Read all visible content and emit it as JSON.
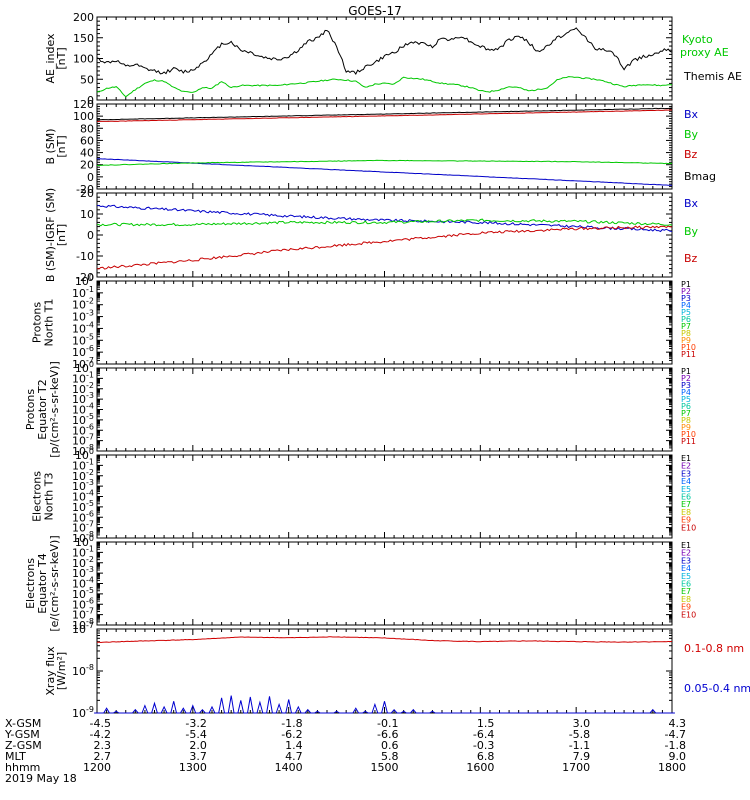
{
  "title": "GOES-17",
  "x_axis": {
    "range": [
      1200,
      1800
    ],
    "rows": [
      {
        "label": "X-GSM",
        "values": [
          "-4.5",
          "-3.2",
          "-1.8",
          "-0.1",
          "1.5",
          "3.0",
          "4.3"
        ]
      },
      {
        "label": "Y-GSM",
        "values": [
          "-4.2",
          "-5.4",
          "-6.2",
          "-6.6",
          "-6.4",
          "-5.8",
          "-4.7"
        ]
      },
      {
        "label": "Z-GSM",
        "values": [
          "2.3",
          "2.0",
          "1.4",
          "0.6",
          "-0.3",
          "-1.1",
          "-1.8"
        ]
      },
      {
        "label": "MLT",
        "values": [
          "2.7",
          "3.7",
          "4.7",
          "5.8",
          "6.8",
          "7.9",
          "9.0"
        ]
      },
      {
        "label": "hhmm",
        "values": [
          "1200",
          "1300",
          "1400",
          "1500",
          "1600",
          "1700",
          "1800"
        ]
      }
    ],
    "date": "2019 May 18"
  },
  "colors": {
    "black": "#000000",
    "green": "#00c800",
    "blue": "#0000c8",
    "red": "#c80000",
    "xray_long": "#d00000",
    "xray_short": "#0000d0"
  },
  "chart_data": [
    {
      "type": "line",
      "ylabel": "AE_index [nT]",
      "ylim": [
        0,
        200
      ],
      "ticks": [
        "0",
        "50",
        "100",
        "150",
        "200"
      ],
      "x": [
        1200,
        1210,
        1220,
        1230,
        1240,
        1250,
        1260,
        1270,
        1280,
        1290,
        1300,
        1310,
        1320,
        1330,
        1340,
        1350,
        1360,
        1370,
        1380,
        1390,
        1400,
        1410,
        1420,
        1430,
        1440,
        1450,
        1460,
        1470,
        1480,
        1490,
        1500,
        1510,
        1520,
        1530,
        1540,
        1550,
        1560,
        1570,
        1580,
        1590,
        1600,
        1610,
        1620,
        1630,
        1640,
        1650,
        1660,
        1670,
        1680,
        1690,
        1700,
        1710,
        1720,
        1730,
        1740,
        1750,
        1760,
        1770,
        1780,
        1790,
        1800
      ],
      "series": [
        {
          "name": "Kyoto proxy AE",
          "color": "#00c800",
          "values": [
            18,
            28,
            32,
            8,
            25,
            40,
            48,
            45,
            30,
            20,
            18,
            30,
            28,
            45,
            30,
            35,
            35,
            35,
            35,
            35,
            38,
            40,
            42,
            45,
            48,
            50,
            48,
            45,
            30,
            38,
            40,
            38,
            55,
            52,
            50,
            45,
            40,
            38,
            35,
            30,
            22,
            20,
            25,
            32,
            30,
            22,
            25,
            30,
            48,
            55,
            55,
            52,
            50,
            45,
            38,
            32,
            35,
            38,
            36,
            35,
            38
          ]
        },
        {
          "name": "Themis AE",
          "color": "#000000",
          "values": [
            100,
            90,
            95,
            80,
            85,
            75,
            70,
            65,
            75,
            68,
            72,
            90,
            110,
            135,
            140,
            120,
            115,
            105,
            100,
            98,
            105,
            120,
            140,
            150,
            168,
            130,
            70,
            65,
            80,
            90,
            105,
            115,
            130,
            140,
            135,
            130,
            150,
            145,
            155,
            140,
            130,
            120,
            125,
            145,
            155,
            140,
            115,
            130,
            150,
            160,
            172,
            150,
            125,
            120,
            110,
            75,
            95,
            105,
            110,
            120,
            118
          ]
        }
      ]
    },
    {
      "type": "line",
      "ylabel": "B (SM) [nT]",
      "ylim": [
        -20,
        120
      ],
      "ticks": [
        "-20",
        "0",
        "20",
        "40",
        "60",
        "80",
        "100",
        "120"
      ],
      "x": [
        1200,
        1800
      ],
      "series": [
        {
          "name": "Bx",
          "color": "#0000c8",
          "values": [
            30,
            -14
          ]
        },
        {
          "name": "By",
          "color": "#00c800",
          "values": [
            19,
            22
          ]
        },
        {
          "name": "Bz",
          "color": "#c80000",
          "values": [
            91,
            110
          ]
        },
        {
          "name": "Bmag",
          "color": "#000000",
          "values": [
            94,
            113
          ]
        }
      ],
      "series_x": {
        "By": [
          1200,
          1300,
          1500,
          1700,
          1800
        ],
        "By_values": [
          19,
          23,
          27,
          25,
          22
        ]
      }
    },
    {
      "type": "line",
      "ylabel": "B (SM)-IGRF (SM) [nT]",
      "ylim": [
        -20,
        20
      ],
      "ticks": [
        "-20",
        "-10",
        "0",
        "10",
        "20"
      ],
      "x": [
        1200,
        1300,
        1400,
        1500,
        1600,
        1700,
        1800
      ],
      "series": [
        {
          "name": "Bx",
          "color": "#0000c8",
          "values": [
            14,
            11.5,
            9,
            7,
            6,
            4,
            2
          ]
        },
        {
          "name": "By",
          "color": "#00c800",
          "values": [
            5,
            5,
            6,
            6,
            7,
            6.5,
            5
          ]
        },
        {
          "name": "Bz",
          "color": "#c80000",
          "values": [
            -16,
            -12,
            -7,
            -3,
            1,
            3,
            4
          ]
        }
      ]
    },
    {
      "type": "line",
      "ylabel": "Protons North T1",
      "ticks": [
        "10",
        "10",
        "10",
        "10",
        "10",
        "10",
        "10",
        "10"
      ],
      "tick_exps": [
        "0",
        "-1",
        "-2",
        "-3",
        "-4",
        "-5",
        "-6",
        "-7"
      ],
      "legend": [
        "P1",
        "P2",
        "P3",
        "P4",
        "P5",
        "P6",
        "P7",
        "P8",
        "P9",
        "P10",
        "P11"
      ],
      "legend_colors": [
        "#000000",
        "#7800b4",
        "#0000c8",
        "#0064ff",
        "#00b4dc",
        "#00c8a0",
        "#00c800",
        "#c8c800",
        "#ff8c00",
        "#ff3c00",
        "#c80000"
      ]
    },
    {
      "type": "line",
      "ylabel": "Protons Equator T2 [p/(cm²-s-sr-keV)]",
      "ticks": [
        "10",
        "10",
        "10",
        "10",
        "10",
        "10",
        "10",
        "10",
        "10"
      ],
      "tick_exps": [
        "0",
        "-1",
        "-2",
        "-3",
        "-4",
        "-5",
        "-6",
        "-7",
        "-8"
      ],
      "legend": [
        "P1",
        "P2",
        "P3",
        "P4",
        "P5",
        "P6",
        "P7",
        "P8",
        "P9",
        "P10",
        "P11"
      ],
      "legend_colors": [
        "#000000",
        "#7800b4",
        "#0000c8",
        "#0064ff",
        "#00b4dc",
        "#00c8a0",
        "#00c800",
        "#c8c800",
        "#ff8c00",
        "#ff3c00",
        "#c80000"
      ]
    },
    {
      "type": "line",
      "ylabel": "Electrons North T3",
      "ticks": [
        "10",
        "10",
        "10",
        "10",
        "10",
        "10",
        "10",
        "10",
        "10"
      ],
      "tick_exps": [
        "0",
        "-1",
        "-2",
        "-3",
        "-4",
        "-5",
        "-6",
        "-7",
        "-8"
      ],
      "legend": [
        "E1",
        "E2",
        "E3",
        "E4",
        "E5",
        "E6",
        "E7",
        "E8",
        "E9",
        "E10"
      ],
      "legend_colors": [
        "#000000",
        "#7800b4",
        "#0000c8",
        "#0064ff",
        "#00b4dc",
        "#00c8a0",
        "#00c800",
        "#c8c800",
        "#ff3c00",
        "#c80000"
      ]
    },
    {
      "type": "line",
      "ylabel": "Electrons Equator T4 [e/(cm²-s-sr-keV)]",
      "ticks": [
        "10",
        "10",
        "10",
        "10",
        "10",
        "10",
        "10",
        "10",
        "10"
      ],
      "tick_exps": [
        "0",
        "-1",
        "-2",
        "-3",
        "-4",
        "-5",
        "-6",
        "-7",
        "-8"
      ],
      "legend": [
        "E1",
        "E2",
        "E3",
        "E4",
        "E5",
        "E6",
        "E7",
        "E8",
        "E9",
        "E10"
      ],
      "legend_colors": [
        "#000000",
        "#7800b4",
        "#0000c8",
        "#0064ff",
        "#00b4dc",
        "#00c8a0",
        "#00c800",
        "#c8c800",
        "#ff3c00",
        "#c80000"
      ]
    },
    {
      "type": "line",
      "ylabel": "Xray flux [W/m²]",
      "yscale": "log",
      "ylim": [
        1e-09,
        1e-07
      ],
      "ticks": [
        "10",
        "10",
        "10"
      ],
      "tick_exps": [
        "-7",
        "-8",
        "-9"
      ],
      "series": [
        {
          "name": "0.1-0.8 nm",
          "color": "#d00000",
          "x": [
            1200,
            1250,
            1300,
            1350,
            1400,
            1450,
            1500,
            1550,
            1600,
            1650,
            1700,
            1750,
            1800
          ],
          "values": [
            4.8e-08,
            5.2e-08,
            5.6e-08,
            6.4e-08,
            6.2e-08,
            6.5e-08,
            6.1e-08,
            5.3e-08,
            5e-08,
            5.2e-08,
            5e-08,
            4.9e-08,
            5e-08
          ]
        },
        {
          "name": "0.05-0.4 nm",
          "color": "#0000d0",
          "x": [
            1200,
            1210,
            1220,
            1230,
            1240,
            1250,
            1260,
            1270,
            1280,
            1290,
            1300,
            1310,
            1320,
            1330,
            1340,
            1350,
            1360,
            1370,
            1380,
            1390,
            1400,
            1410,
            1420,
            1430,
            1440,
            1450,
            1460,
            1470,
            1480,
            1490,
            1500,
            1510,
            1520,
            1530,
            1540,
            1550,
            1560,
            1570,
            1580,
            1590,
            1600,
            1620,
            1640,
            1660,
            1680,
            1700,
            1720,
            1740,
            1760,
            1780,
            1800
          ],
          "values": [
            1e-09,
            1.3e-09,
            1.1e-09,
            1e-09,
            1.2e-09,
            1.5e-09,
            1.7e-09,
            1.4e-09,
            1.9e-09,
            1.3e-09,
            1.5e-09,
            1.2e-09,
            1.4e-09,
            2.3e-09,
            2.6e-09,
            2e-09,
            2.4e-09,
            1.8e-09,
            2.5e-09,
            1.6e-09,
            2.1e-09,
            1.4e-09,
            1.2e-09,
            1.1e-09,
            1e-09,
            1.1e-09,
            1e-09,
            1.3e-09,
            1.1e-09,
            1.6e-09,
            1.9e-09,
            1.2e-09,
            1.1e-09,
            1.2e-09,
            1e-09,
            1.1e-09,
            1e-09,
            1e-09,
            1e-09,
            1e-09,
            1e-09,
            1e-09,
            1e-09,
            1e-09,
            1e-09,
            1e-09,
            1e-09,
            1e-09,
            1e-09,
            1.2e-09,
            1e-09
          ]
        }
      ]
    }
  ]
}
